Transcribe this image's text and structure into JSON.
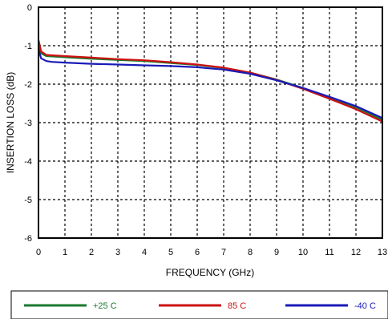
{
  "chart_data": {
    "type": "line",
    "title": "",
    "xlabel": "FREQUENCY (GHz)",
    "ylabel": "INSERTION LOSS (dB)",
    "xlim": [
      0,
      13
    ],
    "ylim": [
      -6,
      0
    ],
    "x_ticks": [
      "0",
      "1",
      "2",
      "3",
      "4",
      "5",
      "6",
      "7",
      "8",
      "9",
      "10",
      "11",
      "12",
      "13"
    ],
    "y_ticks": [
      "0",
      "-1",
      "-2",
      "-3",
      "-4",
      "-5",
      "-6"
    ],
    "grid": true,
    "grid_style": "dashed",
    "legend_position": "bottom",
    "series": [
      {
        "name": "+25 C",
        "color": "#1a7a2e",
        "x": [
          0,
          0.1,
          0.3,
          0.5,
          1,
          2,
          3,
          4,
          5,
          6,
          7,
          8,
          9,
          10,
          11,
          12,
          13
        ],
        "y": [
          -1.05,
          -1.2,
          -1.27,
          -1.28,
          -1.3,
          -1.34,
          -1.37,
          -1.4,
          -1.45,
          -1.5,
          -1.58,
          -1.7,
          -1.88,
          -2.1,
          -2.35,
          -2.6,
          -2.93
        ]
      },
      {
        "name": "85 C",
        "color": "#cc1111",
        "x": [
          0,
          0.1,
          0.3,
          0.5,
          1,
          2,
          3,
          4,
          5,
          6,
          7,
          8,
          9,
          10,
          11,
          12,
          13
        ],
        "y": [
          -0.85,
          -1.15,
          -1.24,
          -1.25,
          -1.27,
          -1.31,
          -1.35,
          -1.38,
          -1.43,
          -1.49,
          -1.57,
          -1.7,
          -1.89,
          -2.12,
          -2.38,
          -2.65,
          -2.97
        ]
      },
      {
        "name": "-40 C",
        "color": "#1a1ab8",
        "x": [
          0,
          0.1,
          0.3,
          0.5,
          1,
          2,
          3,
          4,
          5,
          6,
          7,
          8,
          9,
          10,
          11,
          12,
          13
        ],
        "y": [
          -1.1,
          -1.33,
          -1.4,
          -1.42,
          -1.44,
          -1.47,
          -1.49,
          -1.51,
          -1.53,
          -1.56,
          -1.62,
          -1.73,
          -1.9,
          -2.1,
          -2.33,
          -2.57,
          -2.88
        ]
      }
    ]
  }
}
